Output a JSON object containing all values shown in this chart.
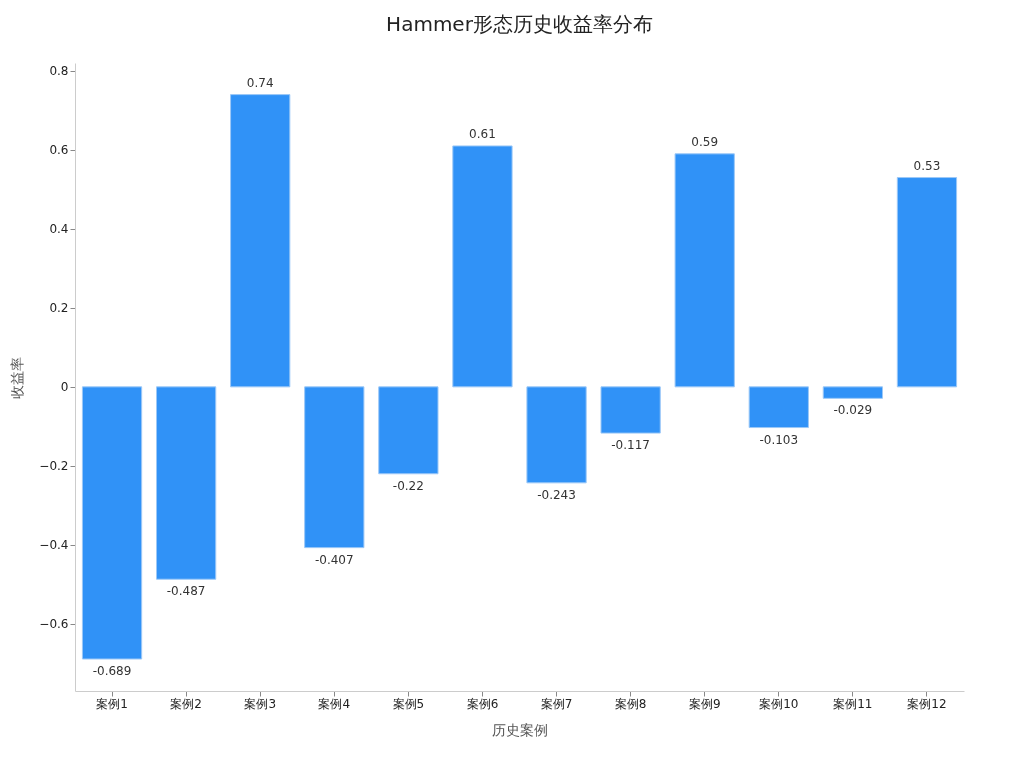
{
  "chart_data": {
    "type": "bar",
    "title": "Hammer形态历史收益率分布",
    "xlabel": "历史案例",
    "ylabel": "收益率",
    "categories": [
      "案例1",
      "案例2",
      "案例3",
      "案例4",
      "案例5",
      "案例6",
      "案例7",
      "案例8",
      "案例9",
      "案例10",
      "案例11",
      "案例12"
    ],
    "values": [
      -0.689,
      -0.487,
      0.74,
      -0.407,
      -0.22,
      0.61,
      -0.243,
      -0.117,
      0.59,
      -0.103,
      -0.029,
      0.53
    ],
    "color": "#3092f7",
    "data_labels": true,
    "grid": false,
    "ylim": [
      -0.77,
      0.82
    ],
    "yticks": [
      {
        "value": -0.6,
        "label": "−0.6"
      },
      {
        "value": -0.4,
        "label": "−0.4"
      },
      {
        "value": -0.2,
        "label": "−0.2"
      },
      0,
      0.2,
      0.4,
      0.6,
      0.8
    ]
  }
}
